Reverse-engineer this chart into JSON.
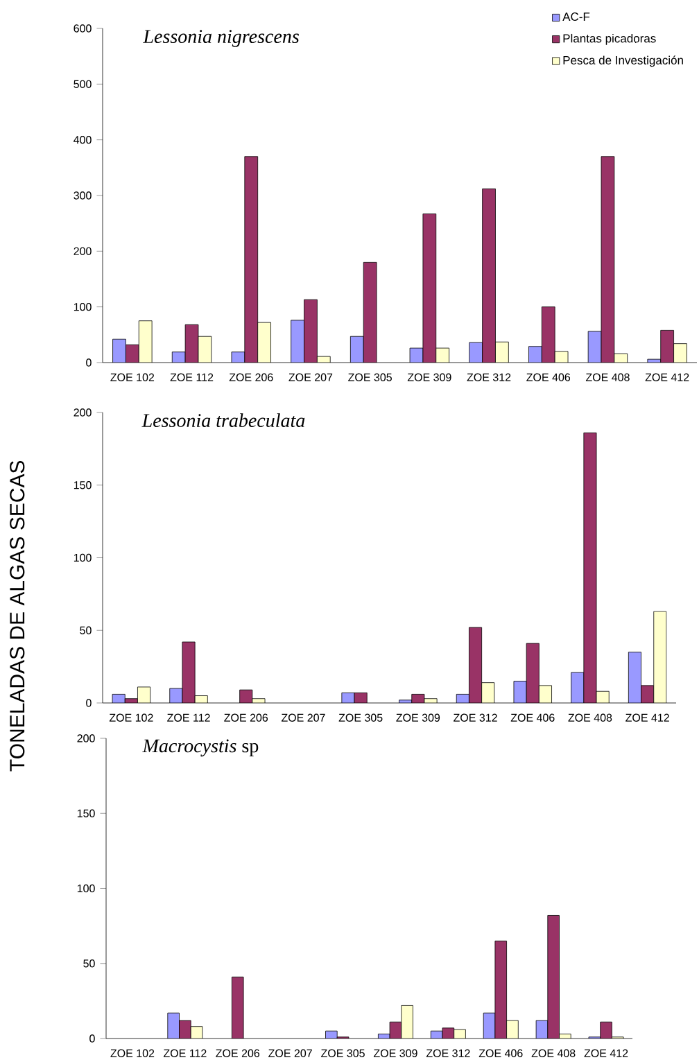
{
  "chart_data": [
    {
      "type": "bar",
      "title": "*Lessonia nigrescens*",
      "categories": [
        "ZOE 102",
        "ZOE 112",
        "ZOE 206",
        "ZOE 207",
        "ZOE 305",
        "ZOE 309",
        "ZOE 312",
        "ZOE 406",
        "ZOE 408",
        "ZOE 412"
      ],
      "ylim": [
        0,
        600
      ],
      "yticks": [
        0,
        100,
        200,
        300,
        400,
        500,
        600
      ],
      "legend": "top right",
      "series": [
        {
          "name": "AC-F",
          "color": "#9999ff",
          "values": [
            42,
            19,
            19,
            76,
            47,
            26,
            36,
            29,
            56,
            6
          ]
        },
        {
          "name": "Plantas picadoras",
          "color": "#993366",
          "values": [
            32,
            68,
            370,
            113,
            180,
            267,
            312,
            100,
            370,
            58
          ]
        },
        {
          "name": "Pesca de Investigación",
          "color": "#ffffcc",
          "values": [
            75,
            47,
            72,
            11,
            null,
            26,
            37,
            20,
            16,
            34
          ]
        }
      ]
    },
    {
      "type": "bar",
      "title": "*Lessonia trabeculata*",
      "ylabel": "TONELADAS DE ALGAS SECAS",
      "categories": [
        "ZOE 102",
        "ZOE 112",
        "ZOE 206",
        "ZOE 207",
        "ZOE 305",
        "ZOE 309",
        "ZOE 312",
        "ZOE 406",
        "ZOE 408",
        "ZOE 412"
      ],
      "ylim": [
        0,
        200
      ],
      "yticks": [
        0,
        50,
        100,
        150,
        200
      ],
      "series": [
        {
          "color": "#9999ff",
          "values": [
            6,
            10,
            null,
            null,
            7,
            2,
            6,
            15,
            21,
            35
          ]
        },
        {
          "color": "#993366",
          "values": [
            3,
            42,
            9,
            null,
            7,
            6,
            52,
            41,
            186,
            12
          ]
        },
        {
          "color": "#ffffcc",
          "values": [
            11,
            5,
            3,
            null,
            null,
            3,
            14,
            12,
            8,
            63
          ]
        }
      ]
    },
    {
      "type": "bar",
      "title": "*Macrocystis* sp",
      "categories": [
        "ZOE 102",
        "ZOE 112",
        "ZOE 206",
        "ZOE 207",
        "ZOE 305",
        "ZOE 309",
        "ZOE 312",
        "ZOE 406",
        "ZOE 408",
        "ZOE 412"
      ],
      "ylim": [
        0,
        200
      ],
      "yticks": [
        0,
        50,
        100,
        150,
        200
      ],
      "series": [
        {
          "color": "#9999ff",
          "values": [
            null,
            17,
            null,
            null,
            5,
            3,
            5,
            17,
            12,
            1
          ]
        },
        {
          "color": "#993366",
          "values": [
            null,
            12,
            41,
            null,
            1,
            11,
            7,
            65,
            82,
            11
          ]
        },
        {
          "color": "#ffffcc",
          "values": [
            null,
            8,
            null,
            null,
            null,
            22,
            6,
            12,
            3,
            1
          ]
        }
      ]
    }
  ]
}
